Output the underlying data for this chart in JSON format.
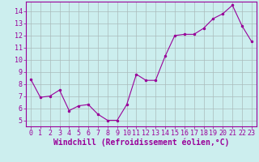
{
  "x": [
    0,
    1,
    2,
    3,
    4,
    5,
    6,
    7,
    8,
    9,
    10,
    11,
    12,
    13,
    14,
    15,
    16,
    17,
    18,
    19,
    20,
    21,
    22,
    23
  ],
  "y": [
    8.4,
    6.9,
    7.0,
    7.5,
    5.8,
    6.2,
    6.3,
    5.5,
    5.0,
    5.0,
    6.3,
    8.8,
    8.3,
    8.3,
    10.3,
    12.0,
    12.1,
    12.1,
    12.6,
    13.4,
    13.8,
    14.5,
    12.8,
    11.5
  ],
  "line_color": "#990099",
  "marker": ".",
  "marker_size": 3,
  "background_color": "#cceeee",
  "grid_color": "#aabbbb",
  "xlabel": "Windchill (Refroidissement éolien,°C)",
  "xlabel_fontsize": 7,
  "tick_fontsize": 6,
  "ylim": [
    4.5,
    14.8
  ],
  "xlim": [
    -0.5,
    23.5
  ],
  "yticks": [
    5,
    6,
    7,
    8,
    9,
    10,
    11,
    12,
    13,
    14
  ],
  "xticks": [
    0,
    1,
    2,
    3,
    4,
    5,
    6,
    7,
    8,
    9,
    10,
    11,
    12,
    13,
    14,
    15,
    16,
    17,
    18,
    19,
    20,
    21,
    22,
    23
  ]
}
